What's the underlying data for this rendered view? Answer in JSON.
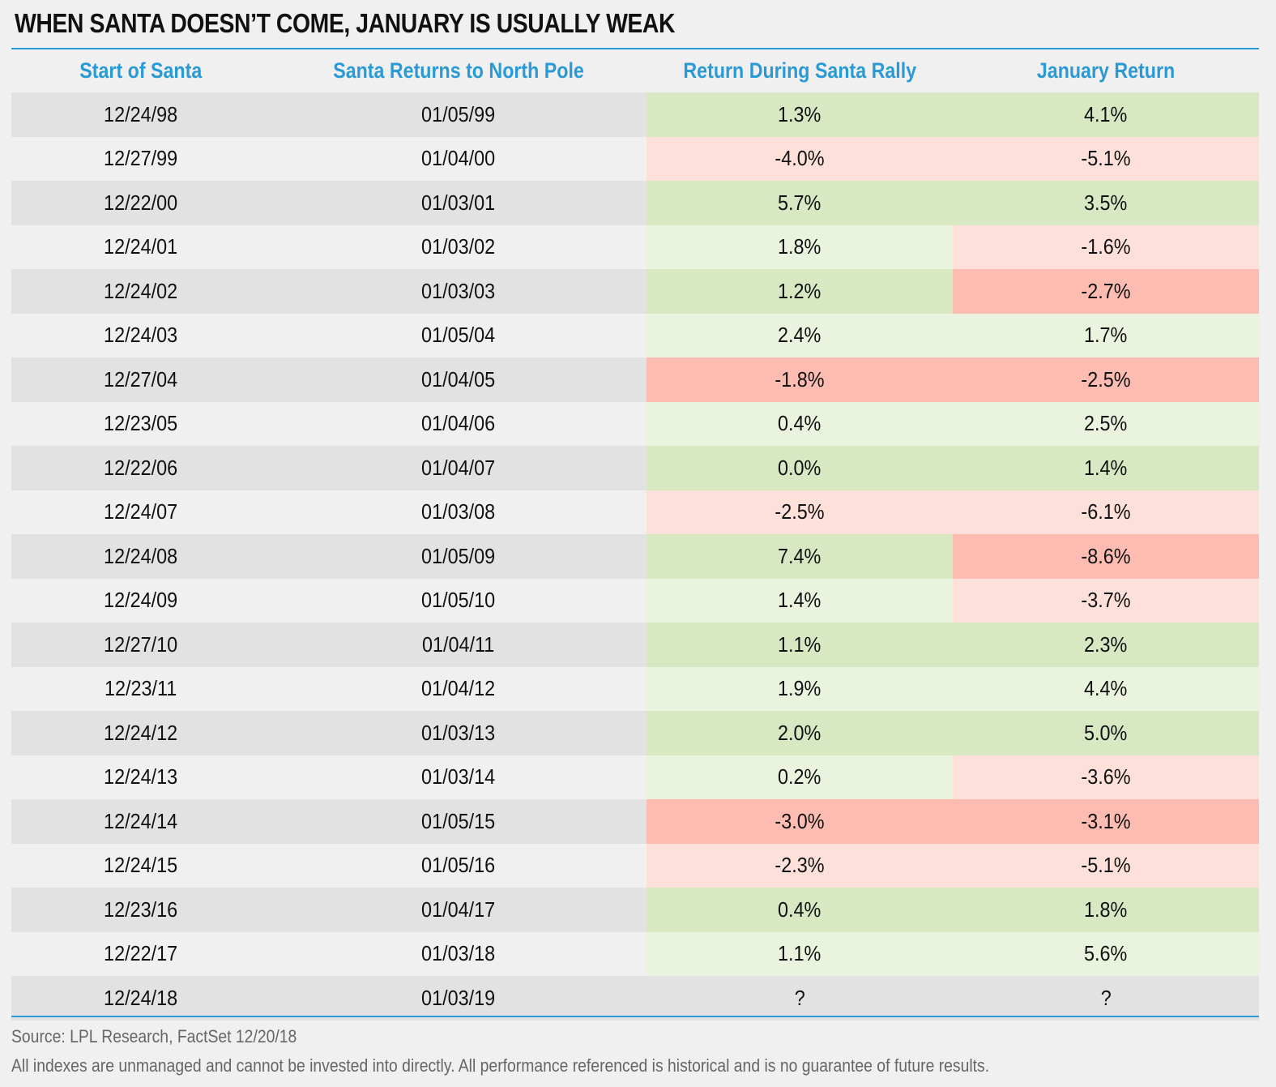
{
  "title": "WHEN SANTA DOESN’T COME, JANUARY IS USUALLY WEAK",
  "colors": {
    "accent": "#2a9ad6",
    "row_gray": "#e2e2e2",
    "row_light": "#f0f0f0",
    "pos_strong": "#d8e8c3",
    "pos_light": "#e9f3de",
    "neg_light": "#fde0da",
    "neg_strong": "#fdbcb2"
  },
  "chart_data": {
    "type": "table",
    "columns": [
      "Start of Santa",
      "Santa Returns to North Pole",
      "Return During Santa Rally",
      "January Return"
    ],
    "rows": [
      {
        "start": "12/24/98",
        "end": "01/05/99",
        "rally": "1.3%",
        "january": "4.1%",
        "rally_color": "pos_strong",
        "january_color": "pos_strong"
      },
      {
        "start": "12/27/99",
        "end": "01/04/00",
        "rally": "-4.0%",
        "january": "-5.1%",
        "rally_color": "neg_light",
        "january_color": "neg_light"
      },
      {
        "start": "12/22/00",
        "end": "01/03/01",
        "rally": "5.7%",
        "january": "3.5%",
        "rally_color": "pos_strong",
        "january_color": "pos_strong"
      },
      {
        "start": "12/24/01",
        "end": "01/03/02",
        "rally": "1.8%",
        "january": "-1.6%",
        "rally_color": "pos_light",
        "january_color": "neg_light"
      },
      {
        "start": "12/24/02",
        "end": "01/03/03",
        "rally": "1.2%",
        "january": "-2.7%",
        "rally_color": "pos_strong",
        "january_color": "neg_strong"
      },
      {
        "start": "12/24/03",
        "end": "01/05/04",
        "rally": "2.4%",
        "january": "1.7%",
        "rally_color": "pos_light",
        "january_color": "pos_light"
      },
      {
        "start": "12/27/04",
        "end": "01/04/05",
        "rally": "-1.8%",
        "january": "-2.5%",
        "rally_color": "neg_strong",
        "january_color": "neg_strong"
      },
      {
        "start": "12/23/05",
        "end": "01/04/06",
        "rally": "0.4%",
        "january": "2.5%",
        "rally_color": "pos_light",
        "january_color": "pos_light"
      },
      {
        "start": "12/22/06",
        "end": "01/04/07",
        "rally": "0.0%",
        "january": "1.4%",
        "rally_color": "pos_strong",
        "january_color": "pos_strong"
      },
      {
        "start": "12/24/07",
        "end": "01/03/08",
        "rally": "-2.5%",
        "january": "-6.1%",
        "rally_color": "neg_light",
        "january_color": "neg_light"
      },
      {
        "start": "12/24/08",
        "end": "01/05/09",
        "rally": "7.4%",
        "january": "-8.6%",
        "rally_color": "pos_strong",
        "january_color": "neg_strong"
      },
      {
        "start": "12/24/09",
        "end": "01/05/10",
        "rally": "1.4%",
        "january": "-3.7%",
        "rally_color": "pos_light",
        "january_color": "neg_light"
      },
      {
        "start": "12/27/10",
        "end": "01/04/11",
        "rally": "1.1%",
        "january": "2.3%",
        "rally_color": "pos_strong",
        "january_color": "pos_strong"
      },
      {
        "start": "12/23/11",
        "end": "01/04/12",
        "rally": "1.9%",
        "january": "4.4%",
        "rally_color": "pos_light",
        "january_color": "pos_light"
      },
      {
        "start": "12/24/12",
        "end": "01/03/13",
        "rally": "2.0%",
        "january": "5.0%",
        "rally_color": "pos_strong",
        "january_color": "pos_strong"
      },
      {
        "start": "12/24/13",
        "end": "01/03/14",
        "rally": "0.2%",
        "january": "-3.6%",
        "rally_color": "pos_light",
        "january_color": "neg_light"
      },
      {
        "start": "12/24/14",
        "end": "01/05/15",
        "rally": "-3.0%",
        "january": "-3.1%",
        "rally_color": "neg_strong",
        "january_color": "neg_strong"
      },
      {
        "start": "12/24/15",
        "end": "01/05/16",
        "rally": "-2.3%",
        "january": "-5.1%",
        "rally_color": "neg_light",
        "january_color": "neg_light"
      },
      {
        "start": "12/23/16",
        "end": "01/04/17",
        "rally": "0.4%",
        "january": "1.8%",
        "rally_color": "pos_strong",
        "january_color": "pos_strong"
      },
      {
        "start": "12/22/17",
        "end": "01/03/18",
        "rally": "1.1%",
        "january": "5.6%",
        "rally_color": "pos_light",
        "january_color": "pos_light"
      },
      {
        "start": "12/24/18",
        "end": "01/03/19",
        "rally": "?",
        "january": "?",
        "rally_color": "row",
        "january_color": "row"
      }
    ]
  },
  "footer": {
    "source": "Source: LPL Research, FactSet   12/20/18",
    "disclaimer": "All indexes are unmanaged and cannot be invested into directly. All performance referenced is historical and is no guarantee of future results."
  }
}
